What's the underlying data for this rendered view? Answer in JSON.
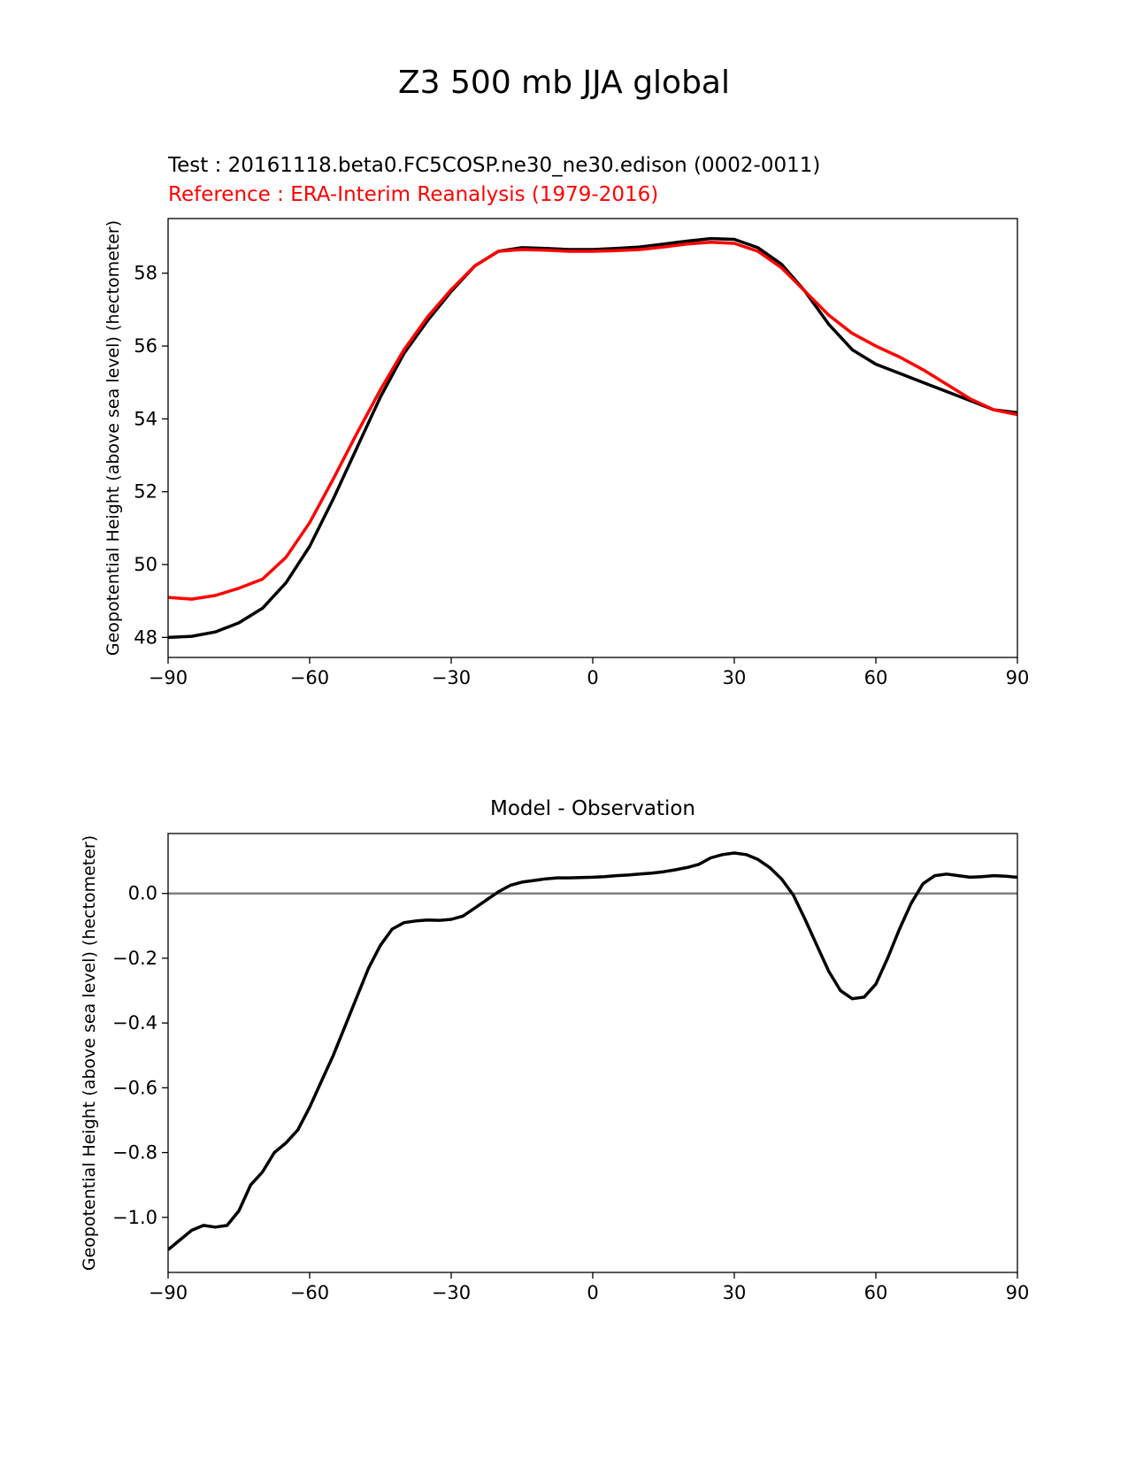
{
  "page": {
    "suptitle": "Z3 500 mb JJA global"
  },
  "chart_data": [
    {
      "type": "line",
      "title_test": "Test : 20161118.beta0.FC5COSP.ne30_ne30.edison (0002-0011)",
      "title_reference": "Reference : ERA-Interim Reanalysis (1979-2016)",
      "xlabel": "",
      "ylabel": "Geopotential Height (above sea level) (hectometer)",
      "xlim": [
        -90,
        90
      ],
      "ylim": [
        47.45,
        59.5
      ],
      "xticks": [
        -90,
        -60,
        -30,
        0,
        30,
        60,
        90
      ],
      "xtick_labels": [
        "−90",
        "−60",
        "−30",
        "0",
        "30",
        "60",
        "90"
      ],
      "yticks": [
        48,
        50,
        52,
        54,
        56,
        58
      ],
      "ytick_labels": [
        "48",
        "50",
        "52",
        "54",
        "56",
        "58"
      ],
      "x": [
        -90,
        -85,
        -80,
        -75,
        -70,
        -65,
        -60,
        -55,
        -50,
        -45,
        -40,
        -35,
        -30,
        -25,
        -20,
        -15,
        -10,
        -5,
        0,
        5,
        10,
        15,
        20,
        25,
        30,
        35,
        40,
        45,
        50,
        55,
        60,
        65,
        70,
        75,
        80,
        85,
        90
      ],
      "series": [
        {
          "name": "Test",
          "color": "#000000",
          "values": [
            48.0,
            48.03,
            48.15,
            48.4,
            48.8,
            49.5,
            50.5,
            51.8,
            53.2,
            54.6,
            55.8,
            56.7,
            57.5,
            58.2,
            58.6,
            58.7,
            58.68,
            58.65,
            58.65,
            58.68,
            58.72,
            58.8,
            58.88,
            58.95,
            58.93,
            58.7,
            58.25,
            57.5,
            56.6,
            55.9,
            55.5,
            55.25,
            55.0,
            54.75,
            54.5,
            54.25,
            54.17
          ]
        },
        {
          "name": "Reference",
          "color": "#ff0000",
          "values": [
            49.1,
            49.05,
            49.15,
            49.35,
            49.6,
            50.2,
            51.15,
            52.35,
            53.6,
            54.8,
            55.9,
            56.8,
            57.55,
            58.2,
            58.6,
            58.65,
            58.63,
            58.6,
            58.6,
            58.62,
            58.65,
            58.72,
            58.8,
            58.85,
            58.82,
            58.6,
            58.15,
            57.5,
            56.85,
            56.35,
            56.0,
            55.7,
            55.35,
            54.95,
            54.55,
            54.25,
            54.12
          ]
        }
      ]
    },
    {
      "type": "line",
      "title": "Model - Observation",
      "xlabel": "",
      "ylabel": "Geopotential Height (above sea level) (hectometer)",
      "xlim": [
        -90,
        90
      ],
      "ylim": [
        -1.17,
        0.185
      ],
      "xticks": [
        -90,
        -60,
        -30,
        0,
        30,
        60,
        90
      ],
      "xtick_labels": [
        "−90",
        "−60",
        "−30",
        "0",
        "30",
        "60",
        "90"
      ],
      "yticks": [
        0.0,
        -0.2,
        -0.4,
        -0.6,
        -0.8,
        -1.0
      ],
      "ytick_labels": [
        "0.0",
        "−0.2",
        "−0.4",
        "−0.6",
        "−0.8",
        "−1.0"
      ],
      "reference_line": {
        "y": 0.0,
        "color": "#808080"
      },
      "x": [
        -90,
        -87.5,
        -85,
        -82.5,
        -80,
        -77.5,
        -75,
        -72.5,
        -70,
        -67.5,
        -65,
        -62.5,
        -60,
        -57.5,
        -55,
        -52.5,
        -50,
        -47.5,
        -45,
        -42.5,
        -40,
        -37.5,
        -35,
        -32.5,
        -30,
        -27.5,
        -25,
        -22.5,
        -20,
        -17.5,
        -15,
        -12.5,
        -10,
        -7.5,
        -5,
        -2.5,
        0,
        2.5,
        5,
        7.5,
        10,
        12.5,
        15,
        17.5,
        20,
        22.5,
        25,
        27.5,
        30,
        32.5,
        35,
        37.5,
        40,
        42.5,
        45,
        47.5,
        50,
        52.5,
        55,
        57.5,
        60,
        62.5,
        65,
        67.5,
        70,
        72.5,
        75,
        77.5,
        80,
        82.5,
        85,
        87.5,
        90
      ],
      "series": [
        {
          "name": "Model - Observation",
          "color": "#000000",
          "values": [
            -1.1,
            -1.07,
            -1.04,
            -1.025,
            -1.03,
            -1.025,
            -0.98,
            -0.9,
            -0.86,
            -0.8,
            -0.77,
            -0.73,
            -0.66,
            -0.58,
            -0.5,
            -0.41,
            -0.32,
            -0.23,
            -0.16,
            -0.11,
            -0.09,
            -0.085,
            -0.082,
            -0.083,
            -0.08,
            -0.07,
            -0.045,
            -0.02,
            0.005,
            0.025,
            0.035,
            0.04,
            0.045,
            0.048,
            0.048,
            0.049,
            0.05,
            0.052,
            0.055,
            0.057,
            0.06,
            0.063,
            0.067,
            0.073,
            0.08,
            0.09,
            0.11,
            0.12,
            0.125,
            0.12,
            0.105,
            0.08,
            0.045,
            -0.005,
            -0.08,
            -0.16,
            -0.24,
            -0.3,
            -0.325,
            -0.32,
            -0.28,
            -0.2,
            -0.11,
            -0.03,
            0.03,
            0.055,
            0.06,
            0.055,
            0.05,
            0.052,
            0.055,
            0.053,
            0.05
          ]
        }
      ]
    }
  ]
}
